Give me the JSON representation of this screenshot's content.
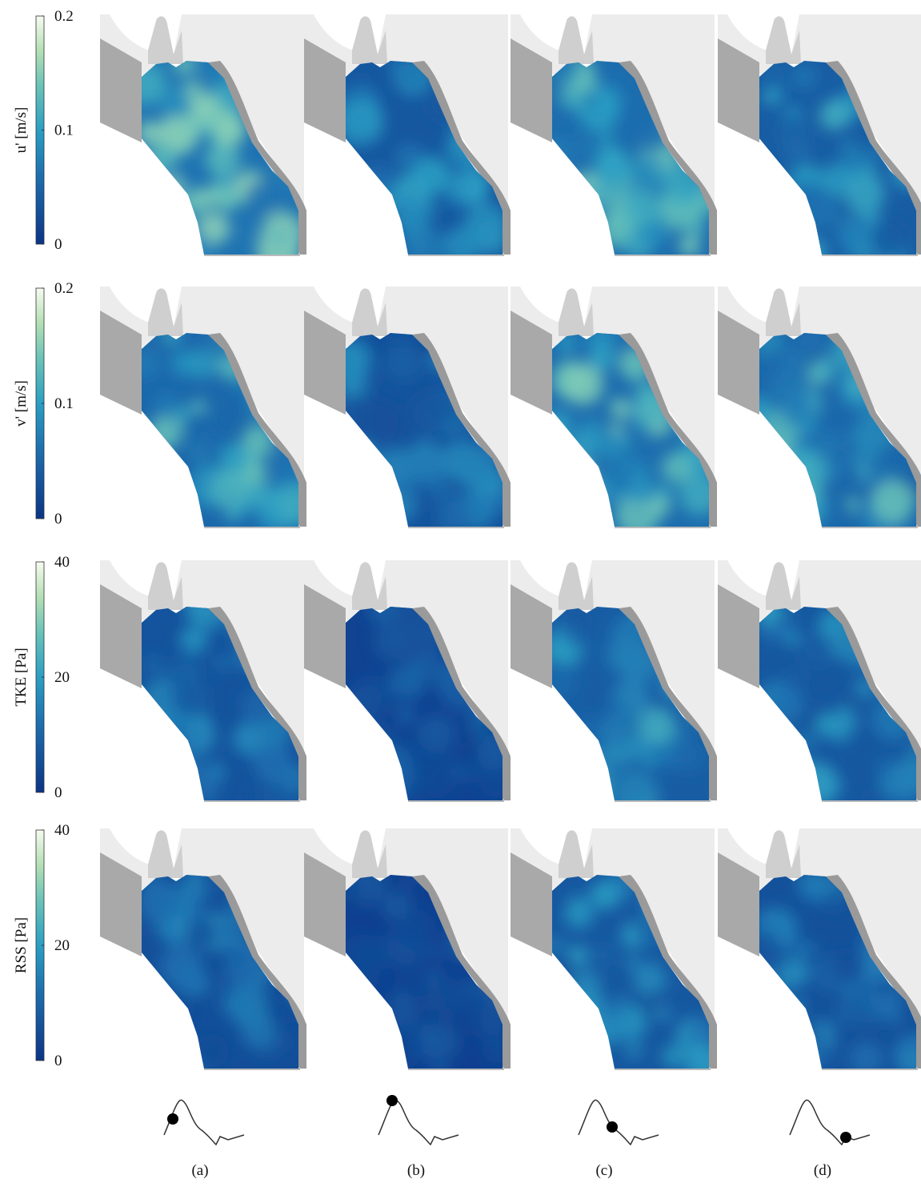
{
  "rows": [
    {
      "label": "u' [m/s]",
      "ticks": [
        0,
        0.1,
        0.2
      ]
    },
    {
      "label": "v' [m/s]",
      "ticks": [
        0,
        0.1,
        0.2
      ]
    },
    {
      "label": "TKE [Pa]",
      "ticks": [
        0,
        20,
        40
      ]
    },
    {
      "label": "RSS [Pa]",
      "ticks": [
        0,
        20,
        40
      ]
    }
  ],
  "panels": [
    "(a)",
    "(b)",
    "(c)",
    "(d)"
  ]
}
